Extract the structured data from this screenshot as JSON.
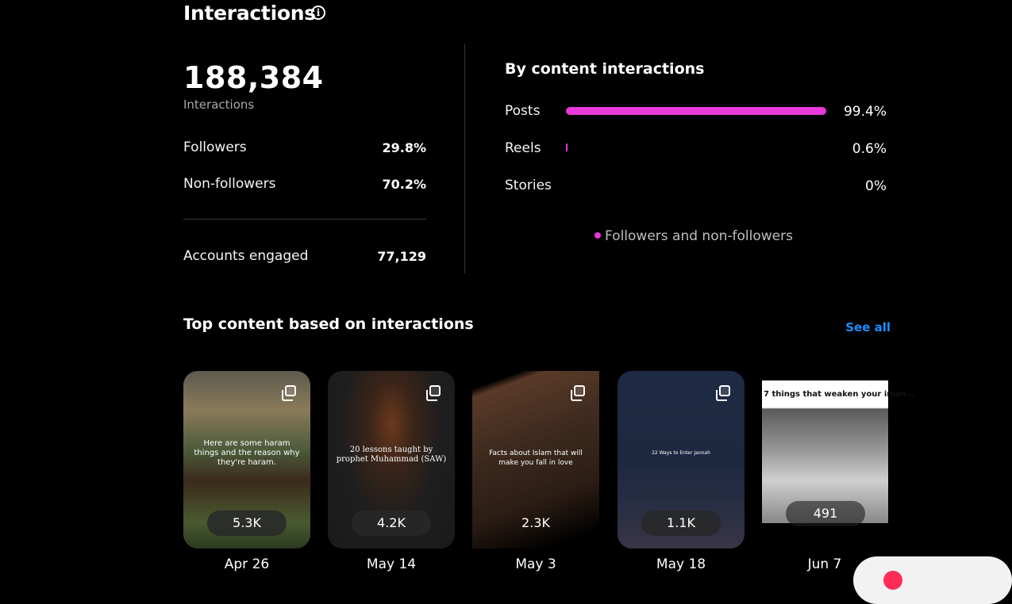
{
  "header": {
    "title": "Interactions",
    "info_icon": "info-icon"
  },
  "summary": {
    "total": "188,384",
    "total_label": "Interactions",
    "rows": [
      {
        "label": "Followers",
        "value": "29.8%"
      },
      {
        "label": "Non-followers",
        "value": "70.2%"
      }
    ],
    "accounts_engaged": {
      "label": "Accounts engaged",
      "value": "77,129"
    }
  },
  "by_content": {
    "title": "By content interactions",
    "rows": [
      {
        "label": "Posts",
        "pct": "99.4%",
        "fraction": 0.994
      },
      {
        "label": "Reels",
        "pct": "0.6%",
        "fraction": 0.006
      },
      {
        "label": "Stories",
        "pct": "0%",
        "fraction": 0
      }
    ],
    "legend": "Followers and non-followers",
    "accent": "#e83ad9"
  },
  "top_content": {
    "title": "Top content based on interactions",
    "see_all": "See all",
    "link_color": "#1e8cff",
    "items": [
      {
        "caption": "Here are some haram things and the reason why they're haram.",
        "count": "5.3K",
        "date": "Apr 26"
      },
      {
        "caption": "20 lessons taught by prophet Muhammad (SAW)",
        "count": "4.2K",
        "date": "May 14"
      },
      {
        "caption": "Facts about Islam that will make you fall in love",
        "count": "2.3K",
        "date": "May 3"
      },
      {
        "caption": "22 Ways to Enter Jannah",
        "count": "1.1K",
        "date": "May 18"
      },
      {
        "caption": "7 things that weaken your iman...",
        "count": "491",
        "date": "Jun 7"
      }
    ]
  }
}
